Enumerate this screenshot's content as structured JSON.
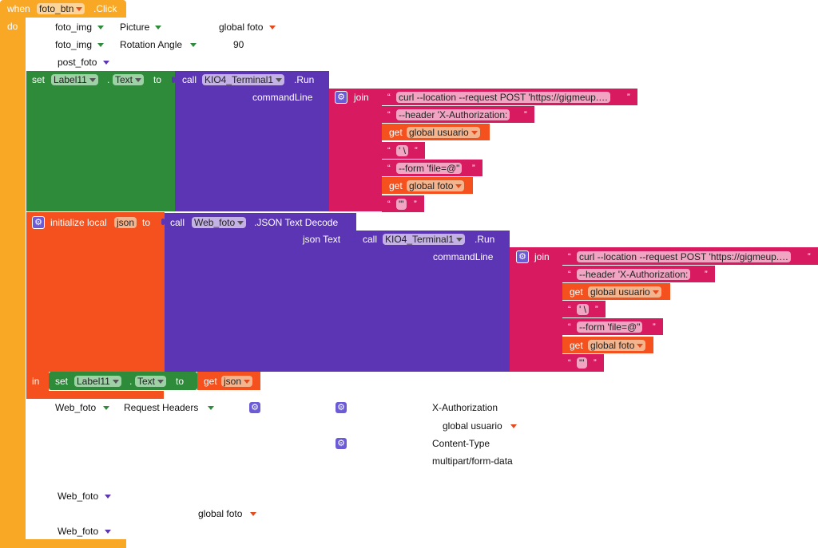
{
  "event": {
    "when": "when",
    "component": "foto_btn",
    "event_name": ".Click",
    "do": "do"
  },
  "ghost": {
    "foto_img_1": "foto_img",
    "picture": "Picture",
    "global_foto_1": "global foto",
    "foto_img_2": "foto_img",
    "rotation_angle": "Rotation Angle",
    "ninety": "90",
    "post_foto": "post_foto",
    "web_foto_1": "Web_foto",
    "request_headers": "Request Headers",
    "x_auth": "X-Authorization",
    "global_usuario": "global usuario",
    "content_type": "Content-Type",
    "multipart": "multipart/form-data",
    "web_foto_2": "Web_foto",
    "global_foto_2": "global foto",
    "web_foto_3": "Web_foto"
  },
  "set_block": {
    "set": "set",
    "component": "Label11",
    "dot": ".",
    "property": "Text",
    "to": "to"
  },
  "call_run_1": {
    "call": "call",
    "component": "KIO4_Terminal1",
    "method": ".Run",
    "param": "commandLine"
  },
  "join_1": {
    "label": "join",
    "items": [
      {
        "kind": "text",
        "value": "curl --location --request POST 'https://gigmeup.…"
      },
      {
        "kind": "text",
        "value": "--header 'X-Authorization: "
      },
      {
        "kind": "get",
        "get": "get",
        "var": "global usuario"
      },
      {
        "kind": "text",
        "value": "' \\"
      },
      {
        "kind": "text",
        "value": "--form 'file=@\""
      },
      {
        "kind": "get",
        "get": "get",
        "var": "global foto"
      },
      {
        "kind": "text",
        "value": "\"'"
      }
    ]
  },
  "init_local": {
    "label": "initialize local",
    "var": "json",
    "to": "to",
    "in": "in"
  },
  "call_decode": {
    "call": "call",
    "component": "Web_foto",
    "method": ".JSON Text Decode",
    "param": "json Text"
  },
  "call_run_2": {
    "call": "call",
    "component": "KIO4_Terminal1",
    "method": ".Run",
    "param": "commandLine"
  },
  "join_2": {
    "label": "join",
    "items": [
      {
        "kind": "text",
        "value": "curl --location --request POST 'https://gigmeup.…"
      },
      {
        "kind": "text",
        "value": "--header 'X-Authorization: "
      },
      {
        "kind": "get",
        "get": "get",
        "var": "global usuario"
      },
      {
        "kind": "text",
        "value": "' \\"
      },
      {
        "kind": "text",
        "value": "--form 'file=@\""
      },
      {
        "kind": "get",
        "get": "get",
        "var": "global foto"
      },
      {
        "kind": "text",
        "value": "\"'"
      }
    ]
  },
  "inner_set": {
    "set": "set",
    "component": "Label11",
    "dot": ".",
    "property": "Text",
    "to": "to",
    "get": "get",
    "var": "json"
  },
  "colors": {
    "event": "#f9a825",
    "set": "#2e8b3a",
    "call": "#5b35b4",
    "join": "#d81b60",
    "local": "#f4511e",
    "get": "#f4511e"
  }
}
